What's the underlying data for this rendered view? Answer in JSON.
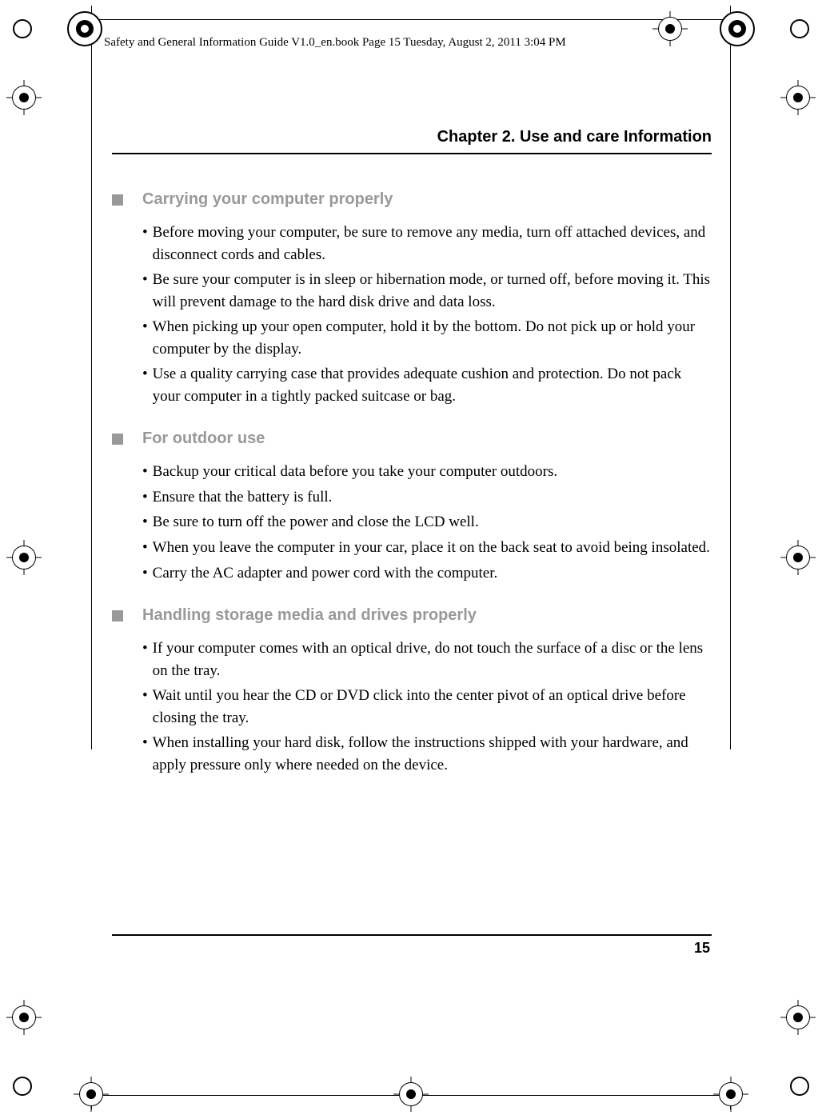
{
  "header": "Safety and General Information Guide V1.0_en.book  Page 15  Tuesday, August 2, 2011  3:04 PM",
  "chapter_title": "Chapter 2. Use and care Information",
  "page_number": "15",
  "sections": [
    {
      "title": "Carrying your computer properly",
      "items": [
        "Before moving your computer, be sure to remove any media, turn off attached devices, and disconnect cords and cables.",
        "Be sure your computer is in sleep or hibernation mode, or turned off, before moving it. This will prevent damage to the hard disk drive and data loss.",
        "When picking up your open computer, hold it by the bottom. Do not pick up or hold your computer by the display.",
        "Use a quality carrying case that provides adequate cushion and protection. Do not pack your computer in a tightly packed suitcase or bag."
      ]
    },
    {
      "title": "For outdoor use",
      "items": [
        "Backup your critical data before you take your computer outdoors.",
        "Ensure that the battery is full.",
        "Be sure to turn off the power and close the LCD well.",
        "When you leave the computer in your car, place it on the back seat to avoid being insolated.",
        "Carry the AC adapter and power cord with the computer."
      ]
    },
    {
      "title": "Handling storage media and drives properly",
      "items": [
        "If your computer comes with an optical drive, do not touch the surface of a disc or the lens on the tray.",
        "Wait until you hear the CD or DVD click into the center pivot of an optical drive before closing the tray.",
        "When installing your hard disk, follow the instructions shipped with your hardware, and apply pressure only where needed on the device."
      ]
    }
  ],
  "colors": {
    "section_title": "#999999",
    "square": "#999999",
    "text": "#000000"
  }
}
